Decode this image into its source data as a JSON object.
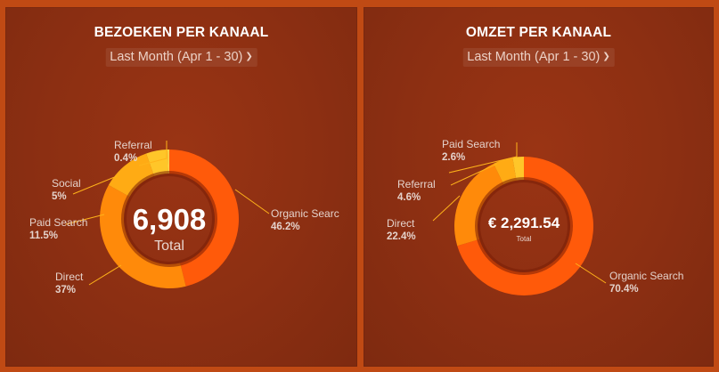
{
  "visits_panel": {
    "title": "BEZOEKEN PER KANAAL",
    "date_range": "Last Month (Apr 1 - 30)",
    "total_value": "6,908",
    "total_label": "Total",
    "slices": [
      {
        "name": "Organic Search",
        "display_name": "Organic Searc",
        "percent": 46.2,
        "label": "46.2%",
        "color": "#ff5a0a"
      },
      {
        "name": "Direct",
        "display_name": "Direct",
        "percent": 37,
        "label": "37%",
        "color": "#ff8a0a"
      },
      {
        "name": "Paid Search",
        "display_name": "Paid Search",
        "percent": 11.5,
        "label": "11.5%",
        "color": "#ffab14"
      },
      {
        "name": "Social",
        "display_name": "Social",
        "percent": 5,
        "label": "5%",
        "color": "#ffc629"
      },
      {
        "name": "Referral",
        "display_name": "Referral",
        "percent": 0.4,
        "label": "0.4%",
        "color": "#ffd84a"
      }
    ]
  },
  "revenue_panel": {
    "title": "OMZET PER KANAAL",
    "date_range": "Last Month (Apr 1 - 30)",
    "total_value": "€ 2,291.54",
    "total_label": "Total",
    "slices": [
      {
        "name": "Organic Search",
        "display_name": "Organic Search",
        "percent": 70.4,
        "label": "70.4%",
        "color": "#ff5a0a"
      },
      {
        "name": "Direct",
        "display_name": "Direct",
        "percent": 22.4,
        "label": "22.4%",
        "color": "#ff8a0a"
      },
      {
        "name": "Referral",
        "display_name": "Referral",
        "percent": 4.6,
        "label": "4.6%",
        "color": "#ffab14"
      },
      {
        "name": "Paid Search",
        "display_name": "Paid Search",
        "percent": 2.6,
        "label": "2.6%",
        "color": "#ffc629"
      }
    ]
  }
}
